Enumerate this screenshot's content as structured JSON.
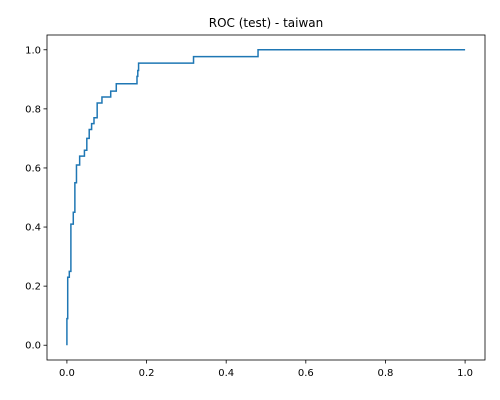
{
  "chart_data": {
    "type": "line",
    "title": "ROC (test) - taiwan",
    "xlabel": "",
    "ylabel": "",
    "xlim": [
      -0.05,
      1.05
    ],
    "ylim": [
      -0.05,
      1.05
    ],
    "x_ticks": [
      0.0,
      0.2,
      0.4,
      0.6,
      0.8,
      1.0
    ],
    "y_ticks": [
      0.0,
      0.2,
      0.4,
      0.6,
      0.8,
      1.0
    ],
    "x_tick_labels": [
      "0.0",
      "0.2",
      "0.4",
      "0.6",
      "0.8",
      "1.0"
    ],
    "y_tick_labels": [
      "0.0",
      "0.2",
      "0.4",
      "0.6",
      "0.8",
      "1.0"
    ],
    "grid": false,
    "series": [
      {
        "color": "#1f77b4",
        "x": [
          0.0,
          0.0,
          0.002,
          0.002,
          0.006,
          0.006,
          0.01,
          0.01,
          0.016,
          0.016,
          0.02,
          0.02,
          0.024,
          0.024,
          0.032,
          0.032,
          0.044,
          0.044,
          0.05,
          0.05,
          0.056,
          0.056,
          0.062,
          0.062,
          0.068,
          0.068,
          0.076,
          0.076,
          0.088,
          0.088,
          0.11,
          0.11,
          0.124,
          0.124,
          0.176,
          0.176,
          0.178,
          0.178,
          0.18,
          0.18,
          0.318,
          0.318,
          0.48,
          0.48,
          1.0
        ],
        "y": [
          0.0,
          0.09,
          0.09,
          0.23,
          0.23,
          0.25,
          0.25,
          0.41,
          0.41,
          0.45,
          0.45,
          0.55,
          0.55,
          0.61,
          0.61,
          0.64,
          0.64,
          0.66,
          0.66,
          0.7,
          0.7,
          0.73,
          0.73,
          0.75,
          0.75,
          0.77,
          0.77,
          0.82,
          0.82,
          0.84,
          0.84,
          0.86,
          0.86,
          0.885,
          0.885,
          0.91,
          0.91,
          0.93,
          0.93,
          0.955,
          0.955,
          0.977,
          0.977,
          1.0,
          1.0
        ]
      }
    ]
  },
  "colors": {
    "line": "#1f77b4",
    "axes": "#000000",
    "background": "#ffffff"
  }
}
